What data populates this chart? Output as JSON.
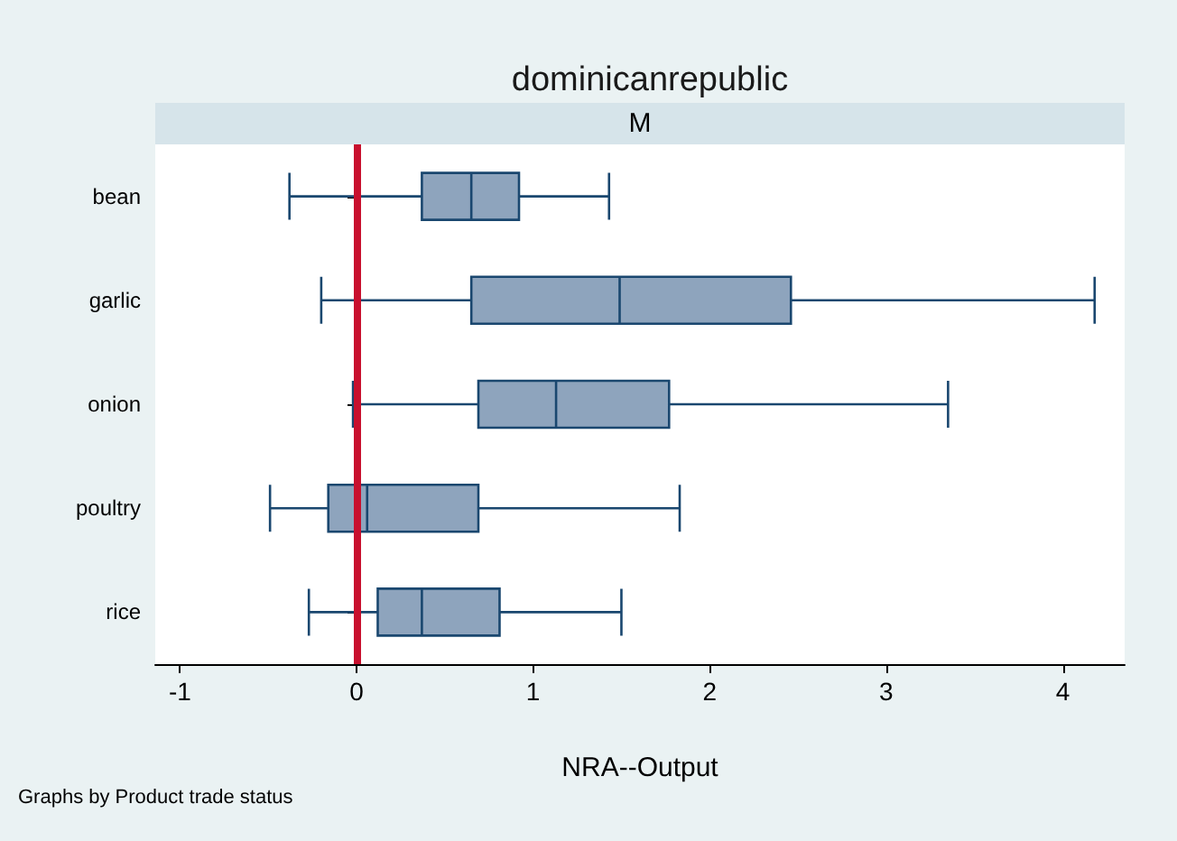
{
  "chart_data": {
    "type": "box",
    "orientation": "horizontal",
    "title": "dominicanrepublic",
    "subtitle": "M",
    "xlabel": "NRA--Output",
    "categories": [
      "bean",
      "garlic",
      "onion",
      "poultry",
      "rice"
    ],
    "series": [
      {
        "color": "#8ea4bd",
        "boxes": [
          {
            "low": -0.38,
            "q1": 0.37,
            "median": 0.65,
            "q3": 0.92,
            "high": 1.43
          },
          {
            "low": -0.2,
            "q1": 0.65,
            "median": 1.49,
            "q3": 2.46,
            "high": 4.18
          },
          {
            "low": -0.02,
            "q1": 0.69,
            "median": 1.13,
            "q3": 1.77,
            "high": 3.35
          },
          {
            "low": -0.49,
            "q1": -0.16,
            "median": 0.06,
            "q3": 0.69,
            "high": 1.83
          },
          {
            "low": -0.27,
            "q1": 0.12,
            "median": 0.37,
            "q3": 0.81,
            "high": 1.5
          }
        ]
      }
    ],
    "xlim": [
      -1.14,
      4.35
    ],
    "xticks": [
      -1,
      0,
      1,
      2,
      3,
      4
    ],
    "ref_lines": [
      {
        "axis": "x",
        "value": 0,
        "color": "#c8102e"
      }
    ],
    "annotations": [
      "Graphs by Product trade status"
    ]
  }
}
